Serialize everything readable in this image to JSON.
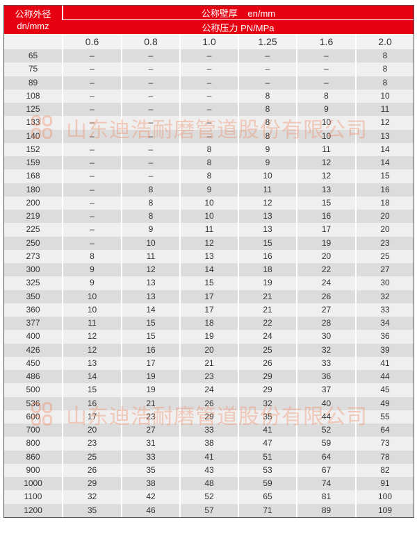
{
  "header": {
    "col0_line1": "公称外径",
    "col0_line2": "dn/mmz",
    "group_title": "公称壁厚    en/mm",
    "group_subtitle": "公称压力 PN/MPa",
    "pressures": [
      "0.6",
      "0.8",
      "1.0",
      "1.25",
      "1.6",
      "2.0"
    ]
  },
  "rows": [
    [
      "65",
      "–",
      "–",
      "–",
      "–",
      "–",
      "8"
    ],
    [
      "75",
      "–",
      "–",
      "–",
      "–",
      "–",
      "8"
    ],
    [
      "89",
      "–",
      "–",
      "–",
      "–",
      "–",
      "8"
    ],
    [
      "108",
      "–",
      "–",
      "–",
      "8",
      "8",
      "10"
    ],
    [
      "125",
      "–",
      "–",
      "–",
      "8",
      "9",
      "11"
    ],
    [
      "133",
      "–",
      "–",
      "–",
      "8",
      "10",
      "12"
    ],
    [
      "140",
      "–",
      "–",
      "–",
      "8",
      "10",
      "13"
    ],
    [
      "152",
      "–",
      "–",
      "8",
      "9",
      "11",
      "14"
    ],
    [
      "159",
      "–",
      "–",
      "8",
      "9",
      "12",
      "14"
    ],
    [
      "168",
      "–",
      "–",
      "8",
      "10",
      "12",
      "15"
    ],
    [
      "180",
      "–",
      "8",
      "9",
      "11",
      "13",
      "16"
    ],
    [
      "200",
      "–",
      "8",
      "10",
      "12",
      "15",
      "18"
    ],
    [
      "219",
      "–",
      "8",
      "10",
      "13",
      "16",
      "20"
    ],
    [
      "225",
      "–",
      "9",
      "11",
      "13",
      "17",
      "20"
    ],
    [
      "250",
      "–",
      "10",
      "12",
      "15",
      "19",
      "23"
    ],
    [
      "273",
      "8",
      "11",
      "13",
      "16",
      "20",
      "25"
    ],
    [
      "300",
      "9",
      "12",
      "14",
      "18",
      "22",
      "27"
    ],
    [
      "325",
      "9",
      "13",
      "15",
      "19",
      "24",
      "30"
    ],
    [
      "350",
      "10",
      "13",
      "17",
      "21",
      "26",
      "32"
    ],
    [
      "360",
      "10",
      "14",
      "17",
      "21",
      "27",
      "33"
    ],
    [
      "377",
      "11",
      "15",
      "18",
      "22",
      "28",
      "34"
    ],
    [
      "400",
      "12",
      "15",
      "19",
      "24",
      "30",
      "36"
    ],
    [
      "426",
      "12",
      "16",
      "20",
      "25",
      "32",
      "39"
    ],
    [
      "450",
      "13",
      "17",
      "21",
      "26",
      "33",
      "41"
    ],
    [
      "486",
      "14",
      "19",
      "23",
      "29",
      "36",
      "44"
    ],
    [
      "500",
      "15",
      "19",
      "24",
      "29",
      "37",
      "45"
    ],
    [
      "536",
      "16",
      "21",
      "26",
      "32",
      "40",
      "49"
    ],
    [
      "600",
      "17",
      "23",
      "29",
      "35",
      "44",
      "55"
    ],
    [
      "700",
      "20",
      "27",
      "33",
      "41",
      "52",
      "64"
    ],
    [
      "800",
      "23",
      "31",
      "38",
      "47",
      "59",
      "73"
    ],
    [
      "860",
      "25",
      "33",
      "41",
      "51",
      "64",
      "78"
    ],
    [
      "900",
      "26",
      "35",
      "43",
      "53",
      "67",
      "82"
    ],
    [
      "1000",
      "29",
      "38",
      "48",
      "59",
      "74",
      "91"
    ],
    [
      "1100",
      "32",
      "42",
      "52",
      "65",
      "81",
      "100"
    ],
    [
      "1200",
      "35",
      "46",
      "57",
      "71",
      "89",
      "109"
    ]
  ],
  "watermark": "山东迪浩耐磨管道股份有限公司",
  "colors": {
    "header_red": "#e60012",
    "row_dark": "#dcdcdc",
    "row_light": "#efefef"
  }
}
